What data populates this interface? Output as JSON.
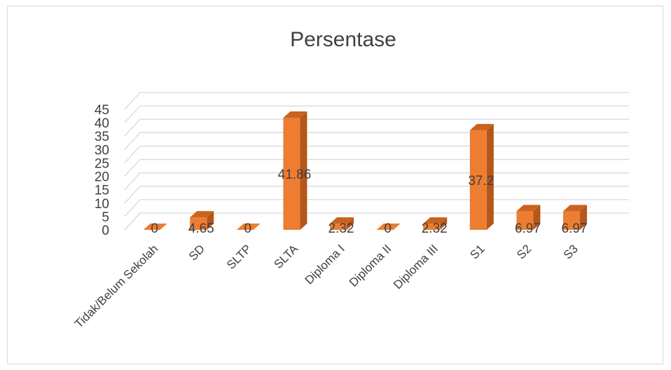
{
  "chart_data": {
    "type": "bar",
    "title": "Persentase",
    "categories": [
      "Tidak/Belum Sekolah",
      "SD",
      "SLTP",
      "SLTA",
      "Diploma I",
      "Diploma II",
      "Diploma III",
      "S1",
      "S2",
      "S3"
    ],
    "values": [
      0,
      4.65,
      0,
      41.86,
      2.32,
      0,
      2.32,
      37.2,
      6.97,
      6.97
    ],
    "data_labels": [
      "0",
      "4.65",
      "0",
      "41.86",
      "2.32",
      "0",
      "2.32",
      "37.2",
      "6.97",
      "6.97"
    ],
    "ylim": [
      0,
      45
    ],
    "yticks": [
      0,
      5,
      10,
      15,
      20,
      25,
      30,
      35,
      40,
      45
    ],
    "grid": true,
    "style": "3d-column",
    "colors": {
      "front": "#ED7D31",
      "side": "#B5561A",
      "top": "#C9631F",
      "grid": "#D9D9D9",
      "text": "#404040"
    }
  }
}
